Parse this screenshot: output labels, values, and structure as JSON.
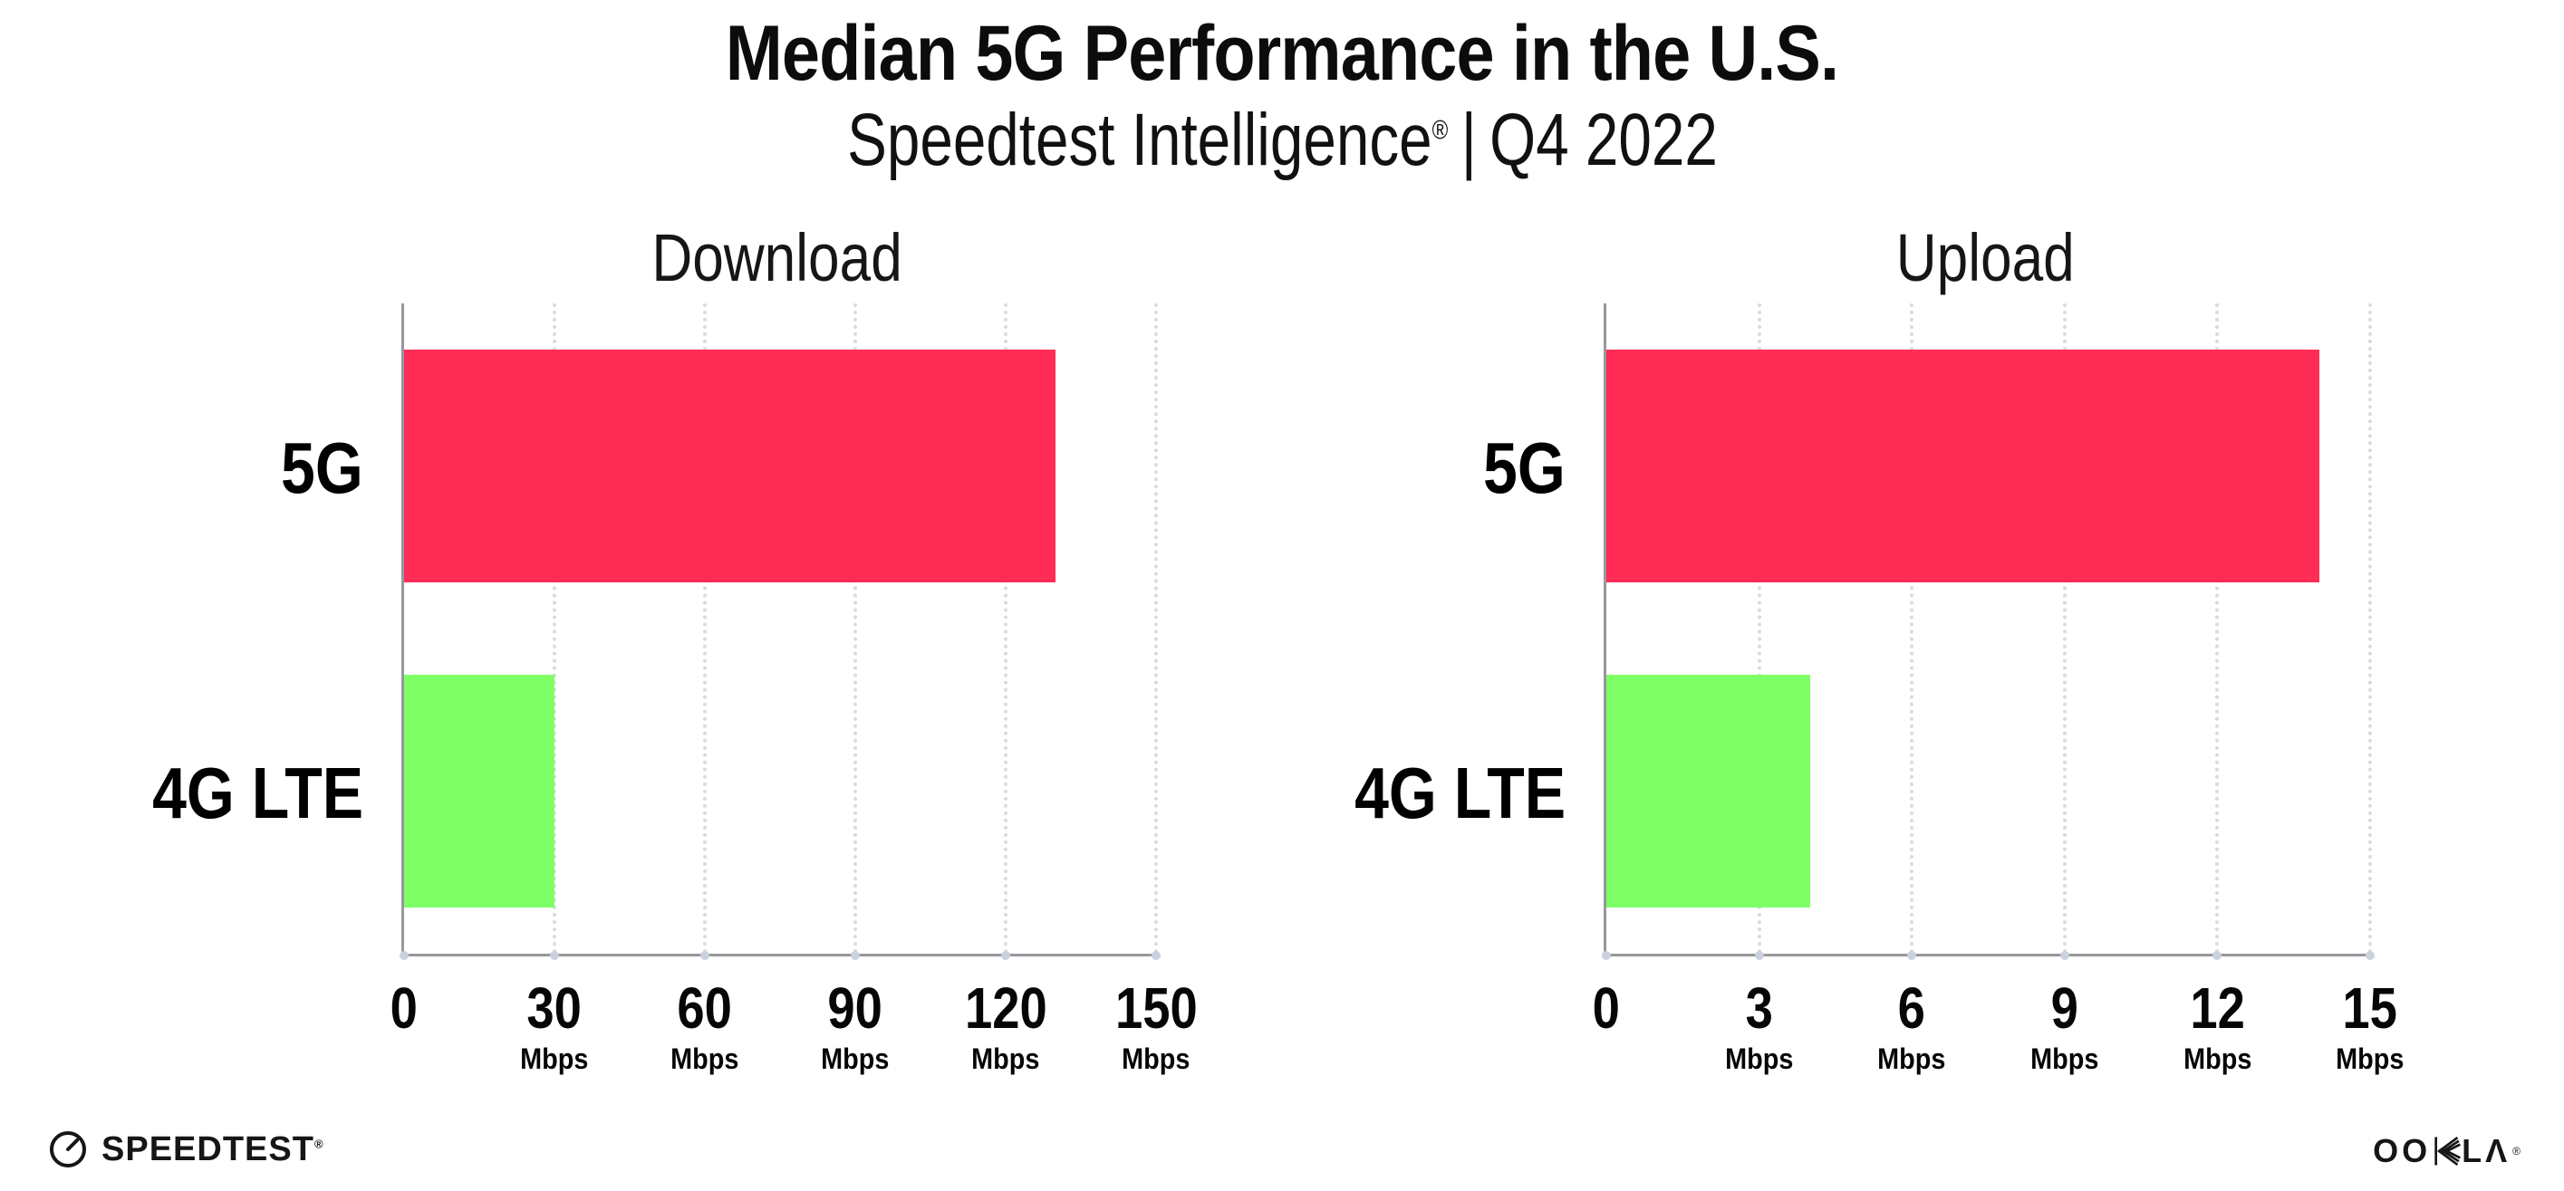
{
  "header": {
    "title": "Median 5G Performance in the U.S.",
    "subtitle_brand": "Speedtest Intelligence",
    "subtitle_reg": "®",
    "subtitle_separator": "|",
    "subtitle_period": "Q4 2022"
  },
  "chart_data": [
    {
      "type": "bar",
      "orientation": "horizontal",
      "title": "Download",
      "categories": [
        "5G",
        "4G LTE"
      ],
      "values": [
        130,
        30
      ],
      "unit": "Mbps",
      "xlim": [
        0,
        150
      ],
      "ticks": [
        0,
        30,
        60,
        90,
        120,
        150
      ],
      "tick_unit": "Mbps",
      "grid": "dotted-vertical",
      "legend": "none",
      "bar_colors": [
        "#FF2D55",
        "#7FFF66"
      ]
    },
    {
      "type": "bar",
      "orientation": "horizontal",
      "title": "Upload",
      "categories": [
        "5G",
        "4G LTE"
      ],
      "values": [
        14,
        4
      ],
      "unit": "Mbps",
      "xlim": [
        0,
        15
      ],
      "ticks": [
        0,
        3,
        6,
        9,
        12,
        15
      ],
      "tick_unit": "Mbps",
      "grid": "dotted-vertical",
      "legend": "none",
      "bar_colors": [
        "#FF2D55",
        "#7FFF66"
      ]
    }
  ],
  "colors": {
    "bar_5g": "#FF2D55",
    "bar_4g_lte": "#7FFF66",
    "axis": "#97979d",
    "gridline": "#d9dae4",
    "text": "#0d0d0d"
  },
  "footer": {
    "speedtest_label": "SPEEDTEST",
    "speedtest_reg": "®",
    "ookla_label": "OOKLA",
    "ookla_parts": {
      "pre": "OO",
      "l": "L",
      "a": "Λ"
    },
    "ookla_reg": "®"
  }
}
